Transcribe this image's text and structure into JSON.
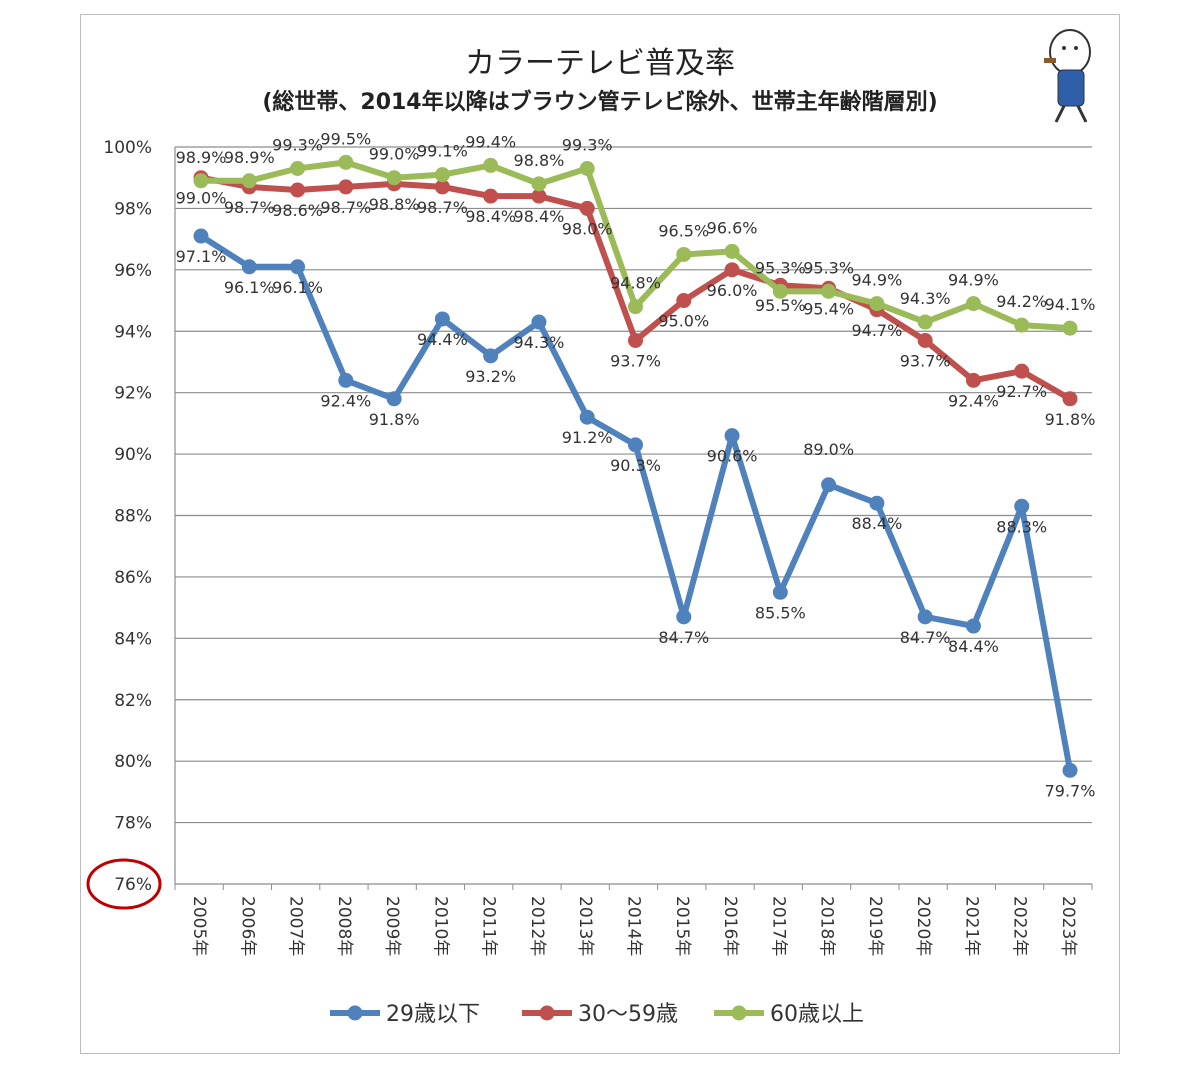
{
  "chart_data": {
    "type": "line",
    "title": "カラーテレビ普及率",
    "subtitle": "(総世帯、2014年以降はブラウン管テレビ除外、世帯主年齢階層別)",
    "xlabel": "",
    "ylabel": "",
    "ylim": [
      76,
      100
    ],
    "yticks": [
      "100%",
      "98%",
      "96%",
      "94%",
      "92%",
      "90%",
      "88%",
      "86%",
      "84%",
      "82%",
      "80%",
      "78%",
      "76%"
    ],
    "ytick_values": [
      100,
      98,
      96,
      94,
      92,
      90,
      88,
      86,
      84,
      82,
      80,
      78,
      76
    ],
    "categories": [
      "2005年",
      "2006年",
      "2007年",
      "2008年",
      "2009年",
      "2010年",
      "2011年",
      "2012年",
      "2013年",
      "2014年",
      "2015年",
      "2016年",
      "2017年",
      "2018年",
      "2019年",
      "2020年",
      "2021年",
      "2022年",
      "2023年"
    ],
    "grid": true,
    "legend_position": "bottom",
    "series": [
      {
        "name": "29歳以下",
        "color": "#4f81bd",
        "label_pos": "below",
        "values": [
          97.1,
          96.1,
          96.1,
          92.4,
          91.8,
          94.4,
          93.2,
          94.3,
          91.2,
          90.3,
          84.7,
          90.6,
          85.5,
          89.0,
          88.4,
          84.7,
          84.4,
          88.3,
          79.7
        ]
      },
      {
        "name": "30〜59歳",
        "color": "#c0504d",
        "label_pos": "below",
        "values": [
          99.0,
          98.7,
          98.6,
          98.7,
          98.8,
          98.7,
          98.4,
          98.4,
          98.0,
          93.7,
          95.0,
          96.0,
          95.5,
          95.4,
          94.7,
          93.7,
          92.4,
          92.7,
          91.8
        ]
      },
      {
        "name": "60歳以上",
        "color": "#9bbb59",
        "label_pos": "above",
        "values": [
          98.9,
          98.9,
          99.3,
          99.5,
          99.0,
          99.1,
          99.4,
          98.8,
          99.3,
          94.8,
          96.5,
          96.6,
          95.3,
          95.3,
          94.9,
          94.3,
          94.9,
          94.2,
          94.1
        ]
      }
    ],
    "annotation": "red circle highlighting 76% axis label",
    "annotation_color": "#c00000"
  }
}
